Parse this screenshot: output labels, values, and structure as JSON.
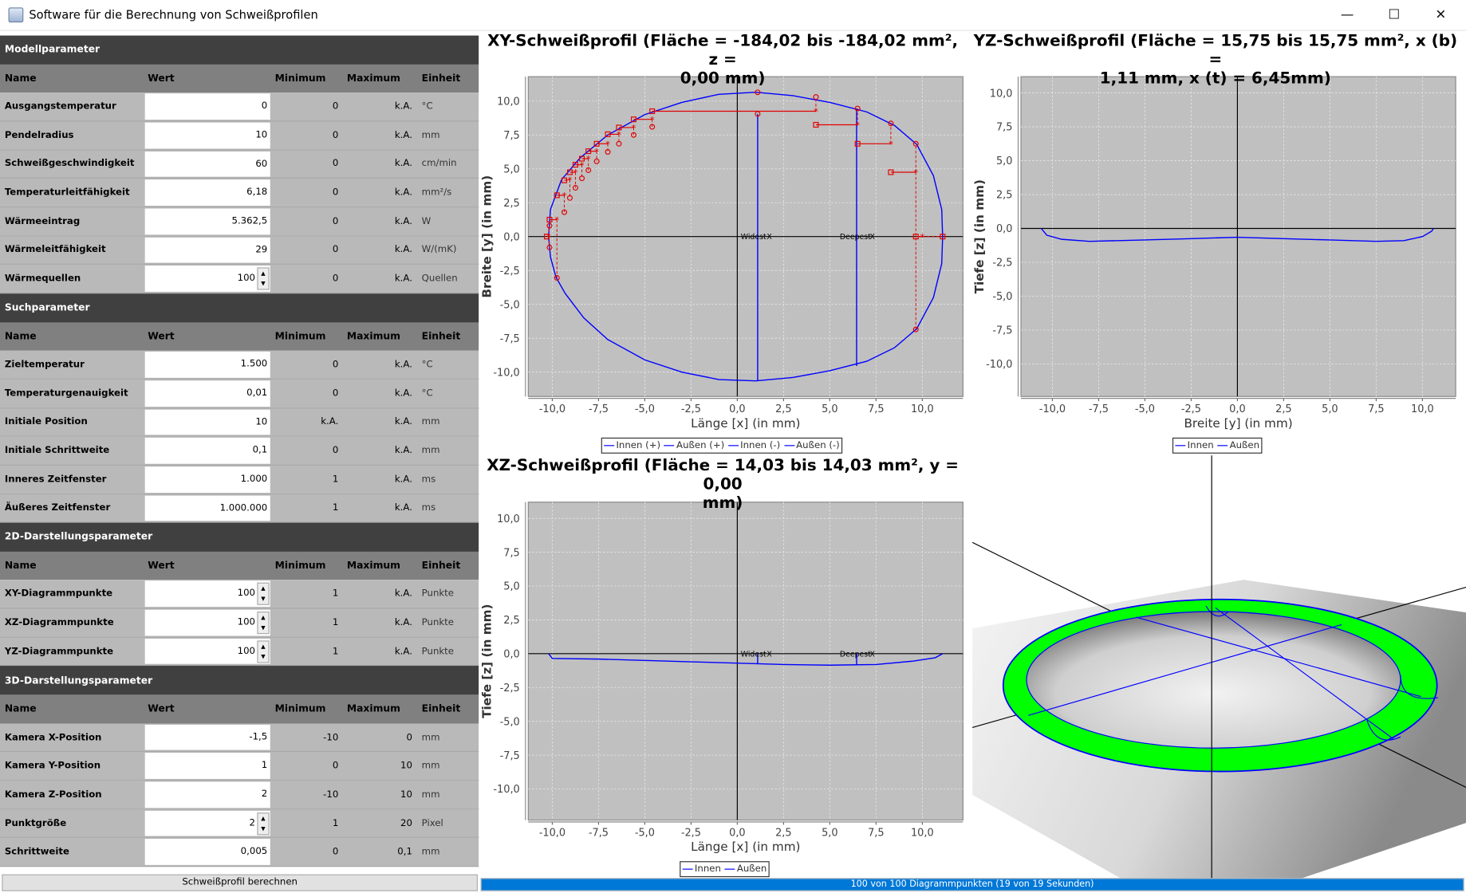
{
  "window": {
    "title": "Software für die Berechnung von Schweißprofilen",
    "controls": [
      "—",
      "☐",
      "✕"
    ]
  },
  "sections": [
    {
      "title": "Modellparameter",
      "headers": {
        "name": "Name",
        "value": "Wert",
        "min": "Minimum",
        "max": "Maximum",
        "unit": "Einheit"
      },
      "rows": [
        {
          "name": "Ausgangstemperatur",
          "value": "0",
          "min": "0",
          "max": "k.A.",
          "unit": "°C"
        },
        {
          "name": "Pendelradius",
          "value": "10",
          "min": "0",
          "max": "k.A.",
          "unit": "mm"
        },
        {
          "name": "Schweißgeschwindigkeit",
          "value": "60",
          "min": "0",
          "max": "k.A.",
          "unit": "cm/min"
        },
        {
          "name": "Temperaturleitfähigkeit",
          "value": "6,18",
          "min": "0",
          "max": "k.A.",
          "unit": "mm²/s"
        },
        {
          "name": "Wärmeeintrag",
          "value": "5.362,5",
          "min": "0",
          "max": "k.A.",
          "unit": "W"
        },
        {
          "name": "Wärmeleitfähigkeit",
          "value": "29",
          "min": "0",
          "max": "k.A.",
          "unit": "W/(mK)"
        },
        {
          "name": "Wärmequellen",
          "value": "100",
          "min": "0",
          "max": "k.A.",
          "unit": "Quellen",
          "spinner": true
        }
      ]
    },
    {
      "title": "Suchparameter",
      "headers": {
        "name": "Name",
        "value": "Wert",
        "min": "Minimum",
        "max": "Maximum",
        "unit": "Einheit"
      },
      "rows": [
        {
          "name": "Zieltemperatur",
          "value": "1.500",
          "min": "0",
          "max": "k.A.",
          "unit": "°C"
        },
        {
          "name": "Temperaturgenauigkeit",
          "value": "0,01",
          "min": "0",
          "max": "k.A.",
          "unit": "°C"
        },
        {
          "name": "Initiale Position",
          "value": "10",
          "min": "k.A.",
          "max": "k.A.",
          "unit": "mm"
        },
        {
          "name": "Initiale Schrittweite",
          "value": "0,1",
          "min": "0",
          "max": "k.A.",
          "unit": "mm"
        },
        {
          "name": "Inneres Zeitfenster",
          "value": "1.000",
          "min": "1",
          "max": "k.A.",
          "unit": "ms"
        },
        {
          "name": "Äußeres Zeitfenster",
          "value": "1.000.000",
          "min": "1",
          "max": "k.A.",
          "unit": "ms"
        }
      ]
    },
    {
      "title": "2D-Darstellungsparameter",
      "headers": {
        "name": "Name",
        "value": "Wert",
        "min": "Minimum",
        "max": "Maximum",
        "unit": "Einheit"
      },
      "rows": [
        {
          "name": "XY-Diagrammpunkte",
          "value": "100",
          "min": "1",
          "max": "k.A.",
          "unit": "Punkte",
          "spinner": true
        },
        {
          "name": "XZ-Diagrammpunkte",
          "value": "100",
          "min": "1",
          "max": "k.A.",
          "unit": "Punkte",
          "spinner": true
        },
        {
          "name": "YZ-Diagrammpunkte",
          "value": "100",
          "min": "1",
          "max": "k.A.",
          "unit": "Punkte",
          "spinner": true
        }
      ]
    },
    {
      "title": "3D-Darstellungsparameter",
      "headers": {
        "name": "Name",
        "value": "Wert",
        "min": "Minimum",
        "max": "Maximum",
        "unit": "Einheit"
      },
      "rows": [
        {
          "name": "Kamera X-Position",
          "value": "-1,5",
          "min": "-10",
          "max": "0",
          "unit": "mm"
        },
        {
          "name": "Kamera Y-Position",
          "value": "1",
          "min": "0",
          "max": "10",
          "unit": "mm"
        },
        {
          "name": "Kamera Z-Position",
          "value": "2",
          "min": "-10",
          "max": "10",
          "unit": "mm"
        },
        {
          "name": "Punktgröße",
          "value": "2",
          "min": "1",
          "max": "20",
          "unit": "Pixel",
          "spinner": true
        },
        {
          "name": "Schrittweite",
          "value": "0,005",
          "min": "0",
          "max": "0,1",
          "unit": "mm"
        }
      ]
    }
  ],
  "calculate_button": "Schweißprofil berechnen",
  "status": {
    "text": "100 von 100 Diagrammpunkten (19 von 19 Sekunden)",
    "progress": 1.0,
    "color": "#0078d7"
  },
  "chart_data": [
    {
      "type": "line",
      "id": "xy",
      "title_lines": [
        "XY-Schweißprofil (Fläche = -184,02 bis -184,02 mm², z =",
        "0,00 mm)"
      ],
      "xlabel": "Länge [x] (in mm)",
      "ylabel": "Breite [y] (in mm)",
      "xlim": [
        -11.3,
        12.2
      ],
      "ylim": [
        -11.8,
        11.8
      ],
      "grid": true,
      "xticks": [
        -10,
        -7.5,
        -5,
        -2.5,
        0,
        2.5,
        5,
        7.5,
        10
      ],
      "xtick_labels": [
        "-10,0",
        "-7,5",
        "-5,0",
        "-2,5",
        "0,0",
        "2,5",
        "5,0",
        "7,5",
        "10,0"
      ],
      "yticks": [
        10,
        7.5,
        5,
        2.5,
        0,
        -2.5,
        -5,
        -7.5,
        -10
      ],
      "ytick_labels": [
        "10,0",
        "7,5",
        "5,0",
        "2,5",
        "0,0",
        "-2,5",
        "-5,0",
        "-7,5",
        "-10,0"
      ],
      "legend": [
        "Innen (+)",
        "Außen (+)",
        "Innen (-)",
        "Außen (-)"
      ],
      "legend_position": "bottom",
      "series": [
        {
          "color": "#0000ff",
          "points": [
            [
              -10.2,
              0
            ],
            [
              -10.1,
              2
            ],
            [
              -9.5,
              4.2
            ],
            [
              -8.5,
              5.8
            ],
            [
              -7,
              7.5
            ],
            [
              -5,
              9.0
            ],
            [
              -3,
              9.9
            ],
            [
              -1,
              10.5
            ],
            [
              1,
              10.65
            ],
            [
              3,
              10.4
            ],
            [
              5,
              9.9
            ],
            [
              7,
              9.2
            ],
            [
              8.5,
              8.2
            ],
            [
              9.7,
              6.8
            ],
            [
              10.6,
              4.5
            ],
            [
              11.05,
              2
            ],
            [
              11.1,
              0
            ],
            [
              11.05,
              -2
            ],
            [
              10.6,
              -4.5
            ],
            [
              9.7,
              -6.8
            ],
            [
              8.5,
              -8.2
            ],
            [
              7,
              -9.2
            ],
            [
              5,
              -9.9
            ],
            [
              3,
              -10.4
            ],
            [
              1,
              -10.65
            ],
            [
              -1,
              -10.55
            ],
            [
              -3,
              -10.0
            ],
            [
              -5,
              -9.1
            ],
            [
              -7,
              -7.6
            ],
            [
              -8.3,
              -6
            ],
            [
              -9.3,
              -4.2
            ],
            [
              -9.8,
              -3
            ],
            [
              -10.1,
              -1.5
            ],
            [
              -10.2,
              0
            ]
          ]
        },
        {
          "color": "#0000ff",
          "points": [
            [
              1.1,
              -10.65
            ],
            [
              1.1,
              9.05
            ]
          ]
        },
        {
          "color": "#0000ff",
          "points": [
            [
              6.45,
              -9.55
            ],
            [
              6.45,
              9.45
            ]
          ]
        }
      ],
      "search_markers": {
        "color": "#e00000",
        "squares": [
          [
            -10.3,
            0
          ],
          [
            -10.15,
            1.25
          ],
          [
            -9.75,
            3.05
          ],
          [
            -9.35,
            4.15
          ],
          [
            -9.05,
            4.75
          ],
          [
            -8.75,
            5.3
          ],
          [
            -8.4,
            5.75
          ],
          [
            -8.05,
            6.3
          ],
          [
            -7.6,
            6.85
          ],
          [
            -7.0,
            7.55
          ],
          [
            -6.4,
            8.05
          ],
          [
            -5.6,
            8.65
          ],
          [
            -4.6,
            9.25
          ],
          [
            4.25,
            8.25
          ],
          [
            6.5,
            6.85
          ],
          [
            8.3,
            4.75
          ],
          [
            9.65,
            0
          ]
        ],
        "stars": [
          [
            -10.2,
            0
          ],
          [
            -9.75,
            1.25
          ],
          [
            -9.35,
            3.05
          ],
          [
            -9.05,
            4.2
          ],
          [
            -8.75,
            4.75
          ],
          [
            -8.4,
            5.3
          ],
          [
            -8.05,
            5.75
          ],
          [
            -7.6,
            6.3
          ],
          [
            -7.0,
            6.85
          ],
          [
            -6.4,
            7.55
          ],
          [
            -5.6,
            8.05
          ],
          [
            -4.6,
            8.65
          ],
          [
            4.25,
            9.25
          ],
          [
            6.5,
            8.25
          ],
          [
            8.3,
            6.85
          ],
          [
            9.65,
            4.75
          ],
          [
            10.0,
            0
          ]
        ],
        "circles": [
          [
            -10.15,
            0.8
          ],
          [
            -10.15,
            -0.8
          ],
          [
            -9.75,
            -3.05
          ],
          [
            -9.35,
            1.8
          ],
          [
            -9.05,
            2.85
          ],
          [
            -8.75,
            3.6
          ],
          [
            -8.4,
            4.3
          ],
          [
            -8.05,
            4.9
          ],
          [
            -7.6,
            5.55
          ],
          [
            -7.0,
            6.25
          ],
          [
            -6.4,
            6.85
          ],
          [
            -5.6,
            7.5
          ],
          [
            -4.6,
            8.1
          ],
          [
            1.1,
            10.65
          ],
          [
            1.1,
            9.05
          ],
          [
            4.25,
            10.3
          ],
          [
            6.5,
            9.45
          ],
          [
            8.3,
            8.35
          ],
          [
            9.65,
            6.85
          ],
          [
            9.65,
            -6.85
          ]
        ],
        "end_square": [
          11.1,
          0
        ]
      },
      "annotations": [
        {
          "text": "Widest",
          "mark": "X",
          "x": 1.1,
          "y": 0
        },
        {
          "text": "Deepest",
          "mark": "X",
          "x": 6.45,
          "y": 0
        }
      ]
    },
    {
      "type": "line",
      "id": "yz",
      "title_lines": [
        "YZ-Schweißprofil (Fläche = 15,75 bis 15,75 mm², x (b) =",
        "1,11 mm, x (t) = 6,45mm)"
      ],
      "xlabel": "Breite [y] (in mm)",
      "ylabel": "Tiefe [z] (in mm)",
      "xlim": [
        -11.7,
        11.8
      ],
      "ylim": [
        -12.4,
        11.2
      ],
      "grid": true,
      "xticks": [
        -10,
        -7.5,
        -5,
        -2.5,
        0,
        2.5,
        5,
        7.5,
        10
      ],
      "xtick_labels": [
        "-10,0",
        "-7,5",
        "-5,0",
        "-2,5",
        "0,0",
        "2,5",
        "5,0",
        "7,5",
        "10,0"
      ],
      "yticks": [
        10,
        7.5,
        5,
        2.5,
        0,
        -2.5,
        -5,
        -7.5,
        -10
      ],
      "ytick_labels": [
        "10,0",
        "7,5",
        "5,0",
        "2,5",
        "0,0",
        "-2,5",
        "-5,0",
        "-7,5",
        "-10,0"
      ],
      "legend": [
        "Innen",
        "Außen"
      ],
      "legend_position": "bottom",
      "series": [
        {
          "color": "#0000ff",
          "points": [
            [
              -10.6,
              0
            ],
            [
              -10.3,
              -0.5
            ],
            [
              -9.5,
              -0.8
            ],
            [
              -8,
              -0.95
            ],
            [
              -5,
              -0.85
            ],
            [
              -2.5,
              -0.75
            ],
            [
              0,
              -0.65
            ],
            [
              2.5,
              -0.75
            ],
            [
              5,
              -0.85
            ],
            [
              7.5,
              -0.95
            ],
            [
              9,
              -0.9
            ],
            [
              10,
              -0.6
            ],
            [
              10.5,
              -0.2
            ],
            [
              10.6,
              0
            ]
          ]
        }
      ],
      "annotations": []
    },
    {
      "type": "line",
      "id": "xz",
      "title_lines": [
        "XZ-Schweißprofil (Fläche = 14,03 bis 14,03 mm², y = 0,00",
        "mm)"
      ],
      "xlabel": "Länge [x] (in mm)",
      "ylabel": "Tiefe [z] (in mm)",
      "xlim": [
        -11.3,
        12.2
      ],
      "ylim": [
        -12.3,
        11.2
      ],
      "grid": true,
      "xticks": [
        -10,
        -7.5,
        -5,
        -2.5,
        0,
        2.5,
        5,
        7.5,
        10
      ],
      "xtick_labels": [
        "-10,0",
        "-7,5",
        "-5,0",
        "-2,5",
        "0,0",
        "2,5",
        "5,0",
        "7,5",
        "10,0"
      ],
      "yticks": [
        10,
        7.5,
        5,
        2.5,
        0,
        -2.5,
        -5,
        -7.5,
        -10
      ],
      "ytick_labels": [
        "10,0",
        "7,5",
        "5,0",
        "2,5",
        "0,0",
        "-2,5",
        "-5,0",
        "-7,5",
        "-10,0"
      ],
      "legend": [
        "Innen",
        "Außen"
      ],
      "legend_position": "bottom",
      "series": [
        {
          "color": "#0000ff",
          "points": [
            [
              -10.2,
              0
            ],
            [
              -10,
              -0.35
            ],
            [
              -7.5,
              -0.4
            ],
            [
              -5,
              -0.5
            ],
            [
              -2.5,
              -0.6
            ],
            [
              0,
              -0.7
            ],
            [
              2.5,
              -0.8
            ],
            [
              5,
              -0.85
            ],
            [
              7.5,
              -0.8
            ],
            [
              9.5,
              -0.55
            ],
            [
              10.7,
              -0.3
            ],
            [
              11.1,
              0
            ]
          ]
        },
        {
          "color": "#0000ff",
          "points": [
            [
              1.1,
              -0.72
            ],
            [
              1.1,
              0
            ]
          ]
        },
        {
          "color": "#0000ff",
          "points": [
            [
              6.45,
              -0.85
            ],
            [
              6.45,
              0
            ]
          ]
        }
      ],
      "annotations": [
        {
          "text": "Widest",
          "mark": "X",
          "x": 1.1,
          "y": 0
        },
        {
          "text": "Deepest",
          "mark": "X",
          "x": 6.45,
          "y": 0
        }
      ]
    }
  ],
  "view3d": {
    "ring_color": "#00ff00",
    "outline_color": "#0000ff"
  }
}
